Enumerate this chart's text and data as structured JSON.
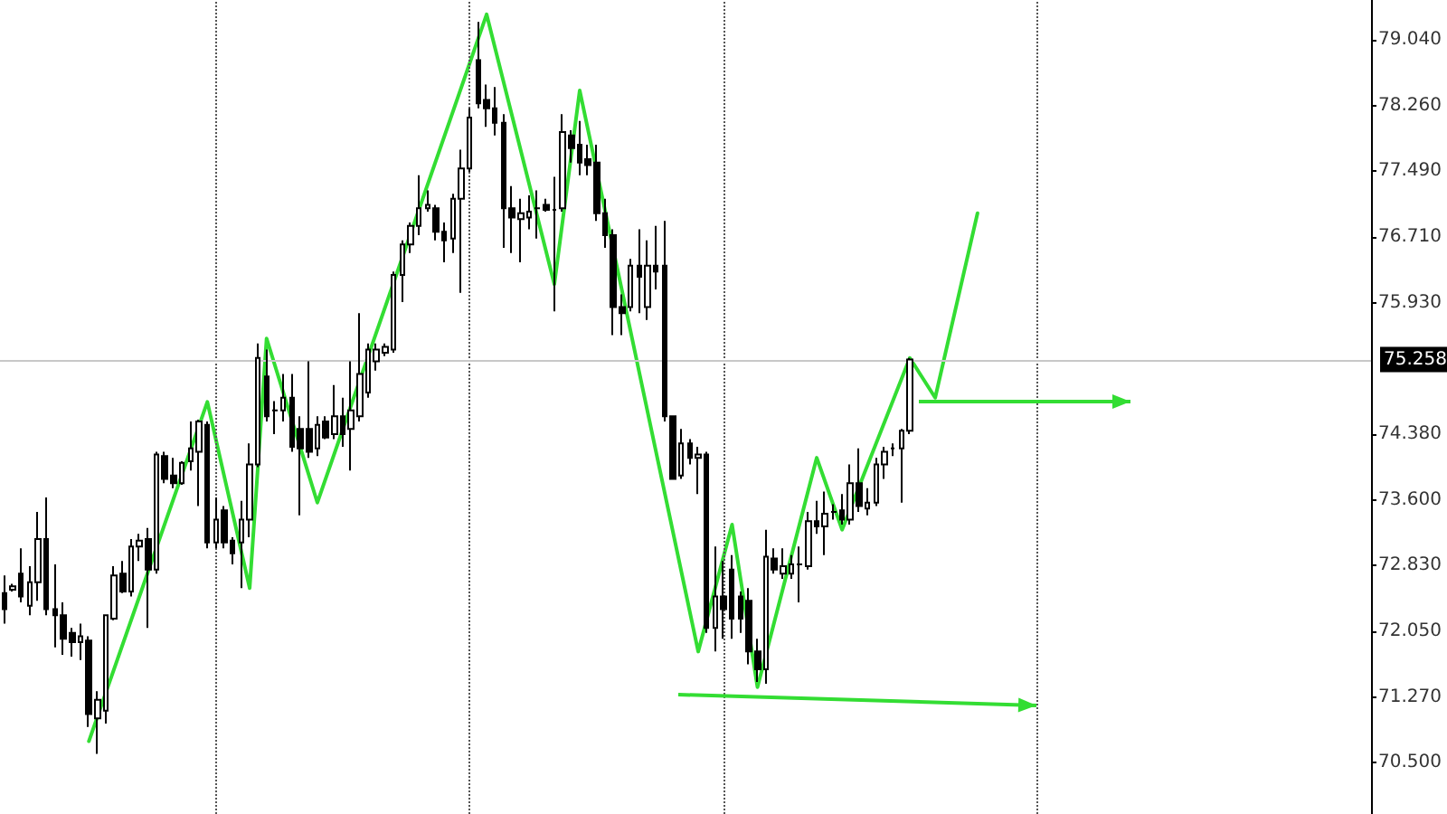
{
  "chart_data": {
    "type": "candlestick",
    "categories": [
      null,
      null,
      null,
      null,
      null,
      null,
      null,
      null,
      null,
      null,
      null,
      null,
      null,
      null,
      null,
      null,
      null,
      null,
      null,
      null,
      null,
      null,
      null,
      null,
      null,
      null,
      null,
      null,
      null,
      null,
      null,
      null,
      null,
      null,
      null,
      null,
      null,
      null,
      null,
      null,
      null,
      null,
      null,
      null,
      null,
      null,
      null,
      null,
      null,
      null,
      null,
      null,
      null,
      null,
      null,
      null,
      null,
      null,
      null,
      null,
      null,
      null,
      null,
      null,
      null,
      null,
      null,
      null,
      null,
      null,
      null,
      null,
      null,
      null,
      null,
      null,
      null,
      null,
      null,
      null,
      null,
      null,
      null,
      null,
      null,
      null,
      null,
      null,
      null,
      null,
      null,
      null,
      null,
      null,
      null,
      null,
      null,
      null,
      null,
      null,
      null,
      null,
      null,
      null,
      null,
      null,
      null,
      null,
      null,
      null,
      null,
      null,
      null,
      null,
      null,
      null,
      null,
      null,
      null,
      null,
      null,
      null,
      null,
      null,
      null,
      null,
      null,
      null,
      null,
      null,
      null,
      null,
      null,
      null,
      null,
      null,
      null,
      null,
      null,
      null,
      null,
      null,
      null,
      null,
      null,
      null,
      null,
      null,
      null,
      null,
      null,
      null,
      null,
      null,
      null,
      null,
      null,
      null,
      null,
      null,
      null,
      null
    ],
    "ohlc": [
      [
        72.5,
        72.71,
        72.14,
        72.31
      ],
      [
        72.54,
        72.61,
        72.52,
        72.58
      ],
      [
        72.73,
        73.03,
        72.39,
        72.46
      ],
      [
        72.35,
        72.82,
        72.24,
        72.63
      ],
      [
        72.63,
        73.46,
        72.41,
        73.14
      ],
      [
        73.14,
        73.63,
        72.24,
        72.31
      ],
      [
        72.31,
        72.84,
        71.86,
        72.24
      ],
      [
        72.24,
        72.39,
        71.77,
        71.96
      ],
      [
        72.03,
        72.09,
        71.75,
        71.92
      ],
      [
        71.92,
        72.14,
        71.71,
        71.99
      ],
      [
        71.94,
        71.99,
        70.92,
        71.07
      ],
      [
        71.02,
        71.34,
        70.6,
        71.24
      ],
      [
        71.11,
        72.24,
        70.96,
        72.24
      ],
      [
        72.2,
        72.82,
        72.18,
        72.71
      ],
      [
        72.73,
        72.88,
        72.5,
        72.52
      ],
      [
        72.52,
        73.14,
        72.46,
        73.05
      ],
      [
        73.05,
        73.2,
        72.88,
        73.12
      ],
      [
        73.14,
        73.27,
        72.09,
        72.78
      ],
      [
        72.78,
        74.17,
        72.73,
        74.14
      ],
      [
        74.12,
        74.17,
        73.8,
        73.85
      ],
      [
        73.89,
        74.1,
        73.74,
        73.8
      ],
      [
        73.8,
        74.06,
        73.78,
        74.04
      ],
      [
        74.06,
        74.53,
        73.95,
        74.21
      ],
      [
        74.17,
        74.55,
        73.53,
        74.53
      ],
      [
        74.49,
        74.53,
        73.03,
        73.1
      ],
      [
        73.1,
        73.63,
        73.03,
        73.37
      ],
      [
        73.48,
        73.53,
        73.03,
        73.1
      ],
      [
        73.12,
        73.16,
        72.84,
        72.97
      ],
      [
        73.1,
        73.59,
        72.56,
        73.37
      ],
      [
        73.37,
        74.27,
        73.16,
        74.02
      ],
      [
        74.02,
        75.45,
        73.99,
        75.28
      ],
      [
        75.06,
        75.38,
        74.53,
        74.59
      ],
      [
        74.66,
        74.77,
        74.38,
        74.66
      ],
      [
        74.66,
        75.09,
        74.53,
        74.81
      ],
      [
        74.81,
        75.09,
        74.17,
        74.23
      ],
      [
        74.44,
        74.59,
        73.42,
        74.21
      ],
      [
        74.44,
        75.24,
        74.1,
        74.17
      ],
      [
        74.21,
        74.59,
        74.12,
        74.49
      ],
      [
        74.53,
        74.59,
        74.32,
        74.34
      ],
      [
        74.38,
        74.96,
        74.32,
        74.59
      ],
      [
        74.59,
        74.81,
        74.23,
        74.38
      ],
      [
        74.44,
        75.24,
        73.95,
        74.66
      ],
      [
        74.59,
        75.81,
        74.53,
        75.09
      ],
      [
        74.87,
        75.45,
        74.81,
        75.38
      ],
      [
        75.24,
        75.45,
        75.13,
        75.38
      ],
      [
        75.34,
        75.45,
        75.3,
        75.41
      ],
      [
        75.38,
        76.3,
        75.34,
        76.26
      ],
      [
        76.26,
        76.67,
        75.94,
        76.62
      ],
      [
        76.62,
        76.88,
        76.52,
        76.84
      ],
      [
        76.84,
        77.44,
        76.73,
        77.05
      ],
      [
        77.05,
        77.26,
        77.01,
        77.09
      ],
      [
        77.05,
        77.09,
        76.67,
        76.77
      ],
      [
        76.77,
        76.88,
        76.41,
        76.67
      ],
      [
        76.69,
        77.22,
        76.52,
        77.16
      ],
      [
        77.16,
        77.74,
        76.05,
        77.52
      ],
      [
        77.52,
        78.23,
        77.48,
        78.12
      ],
      [
        78.8,
        79.25,
        78.23,
        78.29
      ],
      [
        78.33,
        78.51,
        78.01,
        78.23
      ],
      [
        78.23,
        78.48,
        77.91,
        78.06
      ],
      [
        78.06,
        78.16,
        76.58,
        77.05
      ],
      [
        77.05,
        77.31,
        76.52,
        76.94
      ],
      [
        76.92,
        77.16,
        76.41,
        76.99
      ],
      [
        76.94,
        77.2,
        76.8,
        77.01
      ],
      [
        77.05,
        77.26,
        76.69,
        77.05
      ],
      [
        77.09,
        77.16,
        77.01,
        77.03
      ],
      [
        77.03,
        77.42,
        75.83,
        77.03
      ],
      [
        77.05,
        78.16,
        77.01,
        77.95
      ],
      [
        77.91,
        77.97,
        77.59,
        77.76
      ],
      [
        77.8,
        78.08,
        77.44,
        77.59
      ],
      [
        77.63,
        77.8,
        77.44,
        77.56
      ],
      [
        77.59,
        77.8,
        76.9,
        76.99
      ],
      [
        76.99,
        77.16,
        76.58,
        76.73
      ],
      [
        76.73,
        76.8,
        75.55,
        75.88
      ],
      [
        75.88,
        76.03,
        75.55,
        75.81
      ],
      [
        75.88,
        76.45,
        75.83,
        76.37
      ],
      [
        76.37,
        76.8,
        75.81,
        76.24
      ],
      [
        75.88,
        76.67,
        75.73,
        76.37
      ],
      [
        76.37,
        76.84,
        76.09,
        76.3
      ],
      [
        76.37,
        76.9,
        74.53,
        74.59
      ],
      [
        74.59,
        74.59,
        73.85,
        73.85
      ],
      [
        73.89,
        74.44,
        73.85,
        74.27
      ],
      [
        74.27,
        74.32,
        74.02,
        74.1
      ],
      [
        74.1,
        74.23,
        73.67,
        74.14
      ],
      [
        74.14,
        74.17,
        72.03,
        72.09
      ],
      [
        72.09,
        73.05,
        71.81,
        72.46
      ],
      [
        72.46,
        72.88,
        71.96,
        72.31
      ],
      [
        72.78,
        72.95,
        71.96,
        72.2
      ],
      [
        72.46,
        72.52,
        72.03,
        72.2
      ],
      [
        72.41,
        72.56,
        71.66,
        71.81
      ],
      [
        71.81,
        71.96,
        71.45,
        71.6
      ],
      [
        71.6,
        73.25,
        71.43,
        72.93
      ],
      [
        72.91,
        73.03,
        72.73,
        72.78
      ],
      [
        72.73,
        73.03,
        72.67,
        72.82
      ],
      [
        72.73,
        72.95,
        72.67,
        72.84
      ],
      [
        72.84,
        73.05,
        72.39,
        72.84
      ],
      [
        72.82,
        73.46,
        72.78,
        73.35
      ],
      [
        73.35,
        73.59,
        73.2,
        73.29
      ],
      [
        73.29,
        73.7,
        72.95,
        73.44
      ],
      [
        73.46,
        73.55,
        73.37,
        73.46
      ],
      [
        73.48,
        73.67,
        73.31,
        73.37
      ],
      [
        73.37,
        74.02,
        73.31,
        73.8
      ],
      [
        73.8,
        74.21,
        73.46,
        73.53
      ],
      [
        73.5,
        73.74,
        73.42,
        73.57
      ],
      [
        73.57,
        74.1,
        73.53,
        74.02
      ],
      [
        74.02,
        74.23,
        73.85,
        74.17
      ],
      [
        74.21,
        74.27,
        74.12,
        74.21
      ],
      [
        74.21,
        74.44,
        73.57,
        74.42
      ],
      [
        74.42,
        75.28,
        74.38,
        75.26
      ],
      null,
      null,
      null,
      null,
      null,
      null,
      null,
      null,
      null,
      null,
      null,
      null,
      null,
      null,
      null,
      null,
      null,
      null,
      null,
      null,
      null,
      null,
      null,
      null,
      null,
      null,
      null,
      null,
      null,
      null,
      null,
      null,
      null,
      null,
      null,
      null,
      null,
      null,
      null,
      null,
      null,
      null,
      null,
      null,
      null,
      null,
      null,
      null,
      null,
      null,
      null,
      null,
      null,
      null
    ],
    "ylim": [
      69.89,
      79.51
    ],
    "yticks": [
      {
        "value": 70.5,
        "label": "70.500"
      },
      {
        "value": 71.27,
        "label": "71.270"
      },
      {
        "value": 72.05,
        "label": "72.050"
      },
      {
        "value": 72.83,
        "label": "72.830"
      },
      {
        "value": 73.6,
        "label": "73.600"
      },
      {
        "value": 74.38,
        "label": "74.380"
      },
      {
        "value": 75.93,
        "label": "75.930"
      },
      {
        "value": 76.71,
        "label": "76.710"
      },
      {
        "value": 77.49,
        "label": "77.490"
      },
      {
        "value": 78.26,
        "label": "78.260"
      },
      {
        "value": 79.04,
        "label": "79.040"
      }
    ],
    "ref_lines": [
      {
        "axis": "y",
        "value": 75.258,
        "label": "75.258",
        "color": "#c8c8c8",
        "line_style": "solid"
      }
    ],
    "series": [
      {
        "type": "line",
        "color": "#33dd33",
        "values": [
          null,
          null,
          null,
          null,
          null,
          null,
          null,
          null,
          null,
          null,
          70.75,
          null,
          null,
          null,
          null,
          null,
          null,
          null,
          null,
          null,
          null,
          null,
          null,
          null,
          74.76,
          null,
          null,
          null,
          null,
          72.56,
          null,
          75.51,
          null,
          null,
          null,
          null,
          null,
          73.57,
          null,
          null,
          null,
          null,
          null,
          null,
          null,
          null,
          null,
          null,
          null,
          null,
          null,
          null,
          null,
          null,
          null,
          null,
          null,
          79.34,
          null,
          null,
          null,
          null,
          null,
          null,
          null,
          76.15,
          null,
          null,
          78.44,
          null,
          null,
          null,
          null,
          null,
          null,
          null,
          null,
          null,
          null,
          null,
          null,
          null,
          71.81,
          null,
          null,
          null,
          73.31,
          null,
          null,
          71.39,
          null,
          null,
          null,
          null,
          null,
          null,
          74.1,
          null,
          null,
          73.25,
          null,
          null,
          null,
          null,
          null,
          null,
          null,
          75.28,
          null,
          null,
          74.81,
          null,
          null,
          null,
          null,
          76.99,
          null,
          null,
          null,
          null,
          null,
          null,
          null,
          null,
          null,
          null,
          null,
          null,
          null,
          null,
          null,
          null,
          null,
          null,
          null,
          null,
          null,
          null,
          null,
          null,
          null,
          null,
          null,
          null,
          null,
          null,
          null,
          null,
          null,
          null,
          null,
          null,
          null,
          null,
          null,
          null,
          null,
          null,
          null,
          null,
          null,
          null
        ]
      }
    ],
    "tick_labels": "y"
  }
}
